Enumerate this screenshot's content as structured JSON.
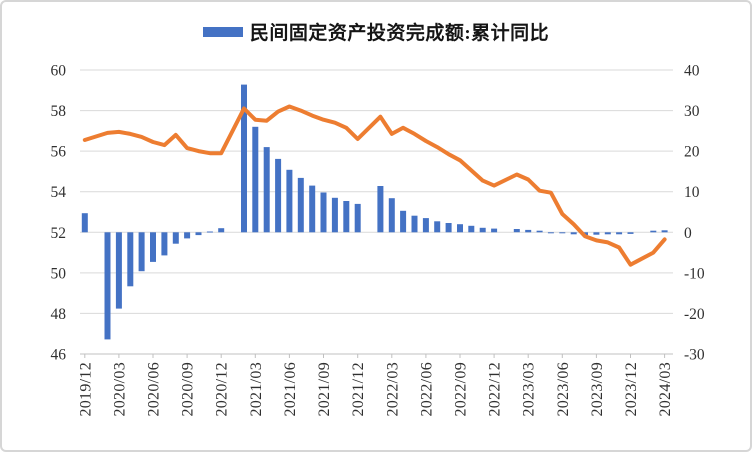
{
  "chart_data": {
    "type": "combo",
    "legend": {
      "position": "top",
      "items": [
        {
          "label": "民间固定资产投资完成额:累计同比",
          "swatch": "bar",
          "color": "#4472C4"
        }
      ]
    },
    "categories": [
      "2019/12",
      "2020/02",
      "2020/03",
      "2020/04",
      "2020/05",
      "2020/06",
      "2020/07",
      "2020/08",
      "2020/09",
      "2020/10",
      "2020/11",
      "2020/12",
      "2021/02",
      "2021/03",
      "2021/04",
      "2021/05",
      "2021/06",
      "2021/07",
      "2021/08",
      "2021/09",
      "2021/10",
      "2021/11",
      "2021/12",
      "2022/02",
      "2022/03",
      "2022/04",
      "2022/05",
      "2022/06",
      "2022/07",
      "2022/08",
      "2022/09",
      "2022/10",
      "2022/11",
      "2022/12",
      "2023/02",
      "2023/03",
      "2023/04",
      "2023/05",
      "2023/06",
      "2023/07",
      "2023/08",
      "2023/09",
      "2023/10",
      "2023/11",
      "2023/12",
      "2024/02",
      "2024/03"
    ],
    "series": [
      {
        "name": "民间固定资产投资完成额:累计同比",
        "type": "bar",
        "axis": "right",
        "color": "#4472C4",
        "values": [
          4.7,
          -26.4,
          -18.8,
          -13.3,
          -9.6,
          -7.3,
          -5.7,
          -2.8,
          -1.5,
          -0.7,
          0.2,
          1.0,
          36.4,
          26.0,
          21.0,
          18.1,
          15.4,
          13.4,
          11.5,
          9.8,
          8.5,
          7.7,
          7.0,
          11.4,
          8.4,
          5.3,
          4.1,
          3.5,
          2.7,
          2.3,
          2.0,
          1.6,
          1.1,
          0.9,
          0.8,
          0.6,
          0.4,
          -0.1,
          -0.2,
          -0.5,
          -0.7,
          -0.6,
          -0.5,
          -0.5,
          -0.4,
          0.4,
          0.5
        ]
      },
      {
        "name": "orange-line",
        "type": "line",
        "axis": "left",
        "color": "#ED7D31",
        "values": [
          56.55,
          56.9,
          56.95,
          56.85,
          56.7,
          56.45,
          56.3,
          56.8,
          56.15,
          56.0,
          55.9,
          55.9,
          58.1,
          57.55,
          57.5,
          57.95,
          58.2,
          58.0,
          57.75,
          57.55,
          57.4,
          57.15,
          56.6,
          57.7,
          56.85,
          57.15,
          56.85,
          56.5,
          56.2,
          55.85,
          55.55,
          55.05,
          54.55,
          54.3,
          54.85,
          54.6,
          54.05,
          53.95,
          52.9,
          52.4,
          51.8,
          51.6,
          51.5,
          51.25,
          50.4,
          51.0,
          51.65
        ]
      }
    ],
    "left_axis": {
      "min": 46,
      "max": 60,
      "ticks": [
        60,
        58,
        56,
        54,
        52,
        50,
        48,
        46
      ]
    },
    "right_axis": {
      "min": -30,
      "max": 40,
      "ticks": [
        40,
        30,
        20,
        10,
        0,
        -10,
        -20,
        -30
      ]
    },
    "x_axis": {
      "labels": [
        "2019/12",
        "2020/03",
        "2020/06",
        "2020/09",
        "2020/12",
        "2021/03",
        "2021/06",
        "2021/09",
        "2021/12",
        "2022/03",
        "2022/06",
        "2022/09",
        "2022/12",
        "2023/03",
        "2023/06",
        "2023/09",
        "2023/12",
        "2024/03"
      ]
    },
    "grid": "horizontal",
    "colors": {
      "grid": "#D9D9D9",
      "axis_line": "#C0C0C0",
      "axis_text": "#303030"
    }
  }
}
